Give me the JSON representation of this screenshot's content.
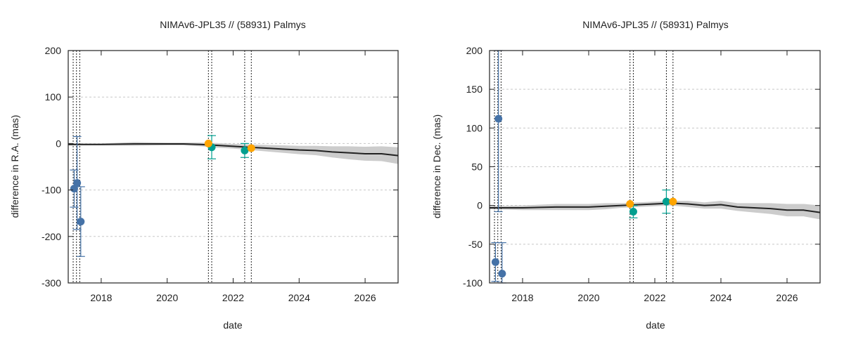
{
  "chart_data": [
    {
      "type": "scatter",
      "title": "NIMAv6-JPL35 // (58931) Palmys",
      "xlabel": "date",
      "ylabel": "difference in R.A. (mas)",
      "xlim": [
        2017.0,
        2027.0
      ],
      "ylim": [
        -300,
        200
      ],
      "x_ticks": [
        2018,
        2020,
        2022,
        2024,
        2026
      ],
      "x_tick_labels": [
        "2018",
        "2020",
        "2022",
        "2024",
        "2026"
      ],
      "y_ticks": [
        -300,
        -200,
        -100,
        0,
        100,
        200
      ],
      "y_tick_labels": [
        "-300",
        "-200",
        "-100",
        "0",
        "100",
        "200"
      ],
      "grid": true,
      "vlines": [
        2017.15,
        2017.25,
        2017.35,
        2021.25,
        2021.35,
        2022.35,
        2022.55
      ],
      "model_curve": {
        "x": [
          2017.0,
          2018.0,
          2019.0,
          2020.0,
          2020.5,
          2021.0,
          2021.5,
          2022.0,
          2022.5,
          2023.0,
          2023.5,
          2024.0,
          2024.5,
          2025.0,
          2025.5,
          2026.0,
          2026.5,
          2027.0
        ],
        "y": [
          -2,
          -2,
          -1,
          -1,
          -1,
          -2,
          -4,
          -6,
          -8,
          -10,
          -12,
          -14,
          -15,
          -18,
          -20,
          -22,
          -22,
          -26
        ],
        "band": [
          2,
          2,
          4,
          3,
          3,
          4,
          5,
          5,
          6,
          7,
          8,
          9,
          10,
          12,
          14,
          15,
          16,
          18
        ]
      },
      "series": [
        {
          "color": "#4572a7",
          "x": [
            2017.18,
            2017.27,
            2017.38
          ],
          "y": [
            -97,
            -85,
            -168
          ],
          "err": [
            40,
            100,
            75
          ]
        },
        {
          "color": "#009f8f",
          "x": [
            2021.35,
            2022.35
          ],
          "y": [
            -8,
            -15
          ],
          "err": [
            25,
            15
          ]
        },
        {
          "color": "#ffa500",
          "x": [
            2021.25,
            2022.55
          ],
          "y": [
            0,
            -10
          ],
          "err": [
            0,
            0
          ]
        }
      ]
    },
    {
      "type": "scatter",
      "title": "NIMAv6-JPL35 // (58931) Palmys",
      "xlabel": "date",
      "ylabel": "difference in Dec. (mas)",
      "xlim": [
        2017.0,
        2027.0
      ],
      "ylim": [
        -100,
        200
      ],
      "x_ticks": [
        2018,
        2020,
        2022,
        2024,
        2026
      ],
      "x_tick_labels": [
        "2018",
        "2020",
        "2022",
        "2024",
        "2026"
      ],
      "y_ticks": [
        -100,
        -50,
        0,
        50,
        100,
        150,
        200
      ],
      "y_tick_labels": [
        "-100",
        "-50",
        "0",
        "50",
        "100",
        "150",
        "200"
      ],
      "grid": true,
      "vlines": [
        2017.15,
        2017.25,
        2017.35,
        2021.25,
        2021.35,
        2022.35,
        2022.55
      ],
      "model_curve": {
        "x": [
          2017.0,
          2018.0,
          2019.0,
          2020.0,
          2020.5,
          2021.0,
          2021.5,
          2022.0,
          2022.5,
          2023.0,
          2023.5,
          2024.0,
          2024.5,
          2025.0,
          2025.5,
          2026.0,
          2026.5,
          2027.0
        ],
        "y": [
          -3,
          -3,
          -2,
          -2,
          -1,
          0,
          1,
          2,
          3,
          2,
          0,
          1,
          -2,
          -3,
          -4,
          -6,
          -6,
          -9
        ],
        "band": [
          2,
          3,
          4,
          4,
          4,
          3,
          3,
          3,
          3,
          4,
          4,
          5,
          5,
          6,
          7,
          8,
          8,
          9
        ]
      },
      "series": [
        {
          "color": "#4572a7",
          "x": [
            2017.18,
            2017.27,
            2017.38
          ],
          "y": [
            -73,
            112,
            -88
          ],
          "err": [
            25,
            120,
            40
          ]
        },
        {
          "color": "#009f8f",
          "x": [
            2021.35,
            2022.35
          ],
          "y": [
            -8,
            5
          ],
          "err": [
            8,
            15
          ]
        },
        {
          "color": "#ffa500",
          "x": [
            2021.25,
            2022.55
          ],
          "y": [
            2,
            5
          ],
          "err": [
            0,
            0
          ]
        }
      ]
    }
  ]
}
